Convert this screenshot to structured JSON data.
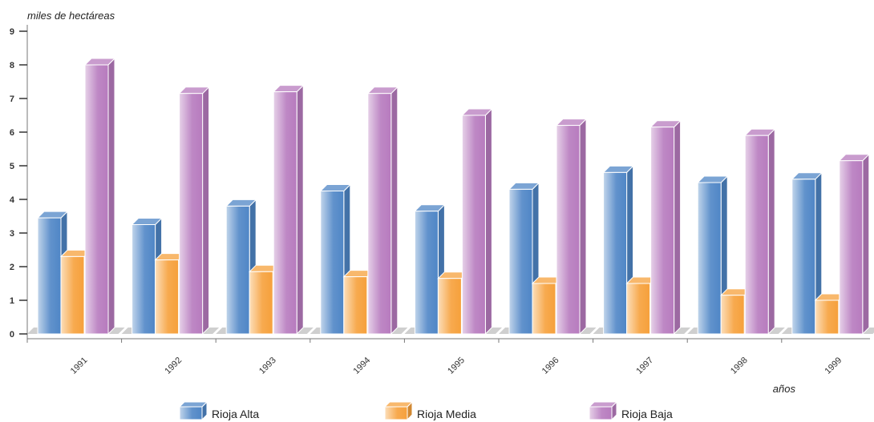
{
  "chart_data": {
    "type": "bar",
    "style": "3d-column",
    "ylabel": "miles de hectáreas",
    "xlabel": "años",
    "ylim": [
      0,
      9
    ],
    "yticks": [
      0,
      1,
      2,
      3,
      4,
      5,
      6,
      7,
      8,
      9
    ],
    "categories": [
      "1991",
      "1992",
      "1993",
      "1994",
      "1995",
      "1996",
      "1997",
      "1998",
      "1999"
    ],
    "series": [
      {
        "name": "Rioja Alta",
        "color": "#4f86c6",
        "values": [
          3.45,
          3.25,
          3.8,
          4.25,
          3.65,
          4.3,
          4.8,
          4.5,
          4.6
        ]
      },
      {
        "name": "Rioja Media",
        "color": "#f6a03b",
        "values": [
          2.3,
          2.2,
          1.85,
          1.7,
          1.65,
          1.5,
          1.5,
          1.15,
          1.0
        ]
      },
      {
        "name": "Rioja Baja",
        "color": "#b77bbe",
        "values": [
          8.0,
          7.15,
          7.2,
          7.15,
          6.5,
          6.2,
          6.15,
          5.9,
          5.15
        ]
      }
    ],
    "legend_position": "bottom",
    "grid": false
  }
}
